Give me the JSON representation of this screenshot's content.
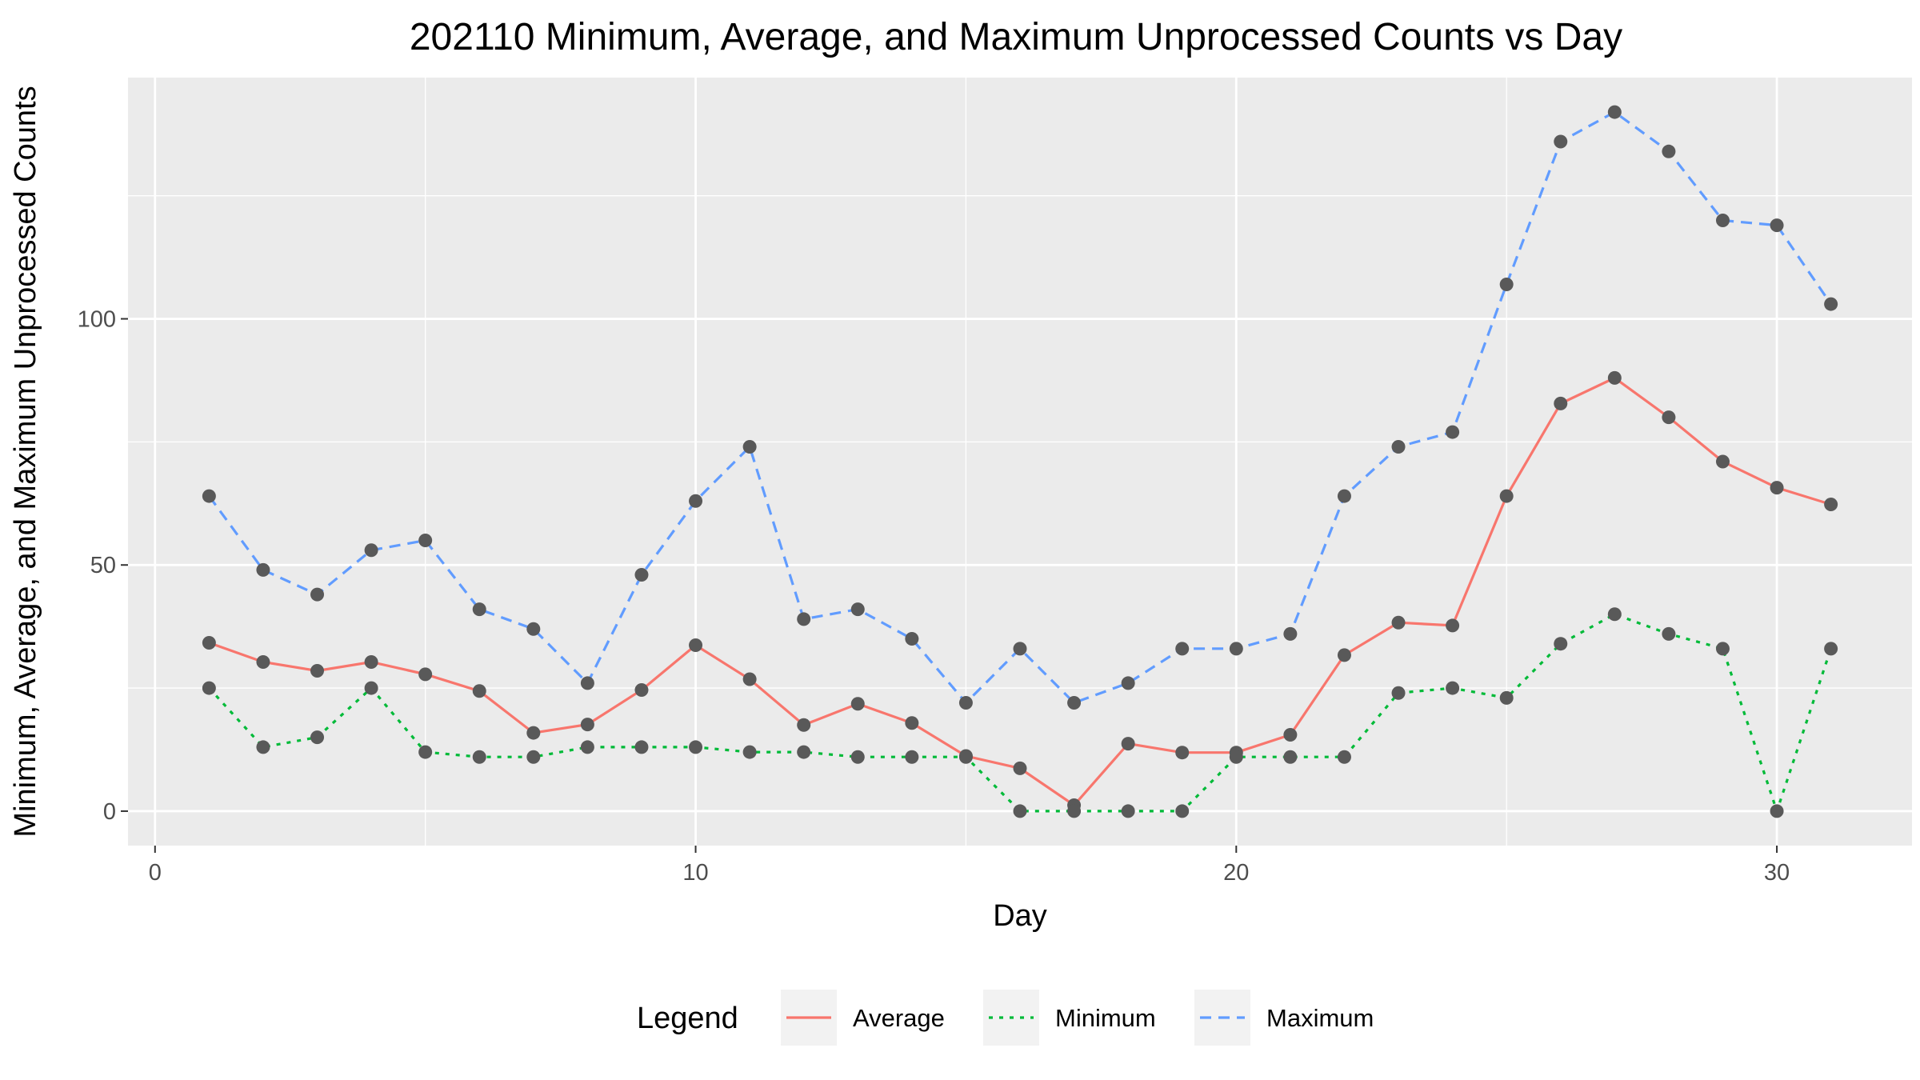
{
  "chart_data": {
    "type": "line",
    "title": "202110 Minimum, Average, and Maximum Unprocessed Counts vs Day",
    "xlabel": "Day",
    "ylabel": "Minimum, Average, and Maximum Unprocessed Counts",
    "xlim": [
      -0.5,
      32.5
    ],
    "ylim": [
      -7,
      149
    ],
    "x_ticks": [
      0,
      10,
      20,
      30
    ],
    "y_ticks": [
      0,
      50,
      100
    ],
    "grid": true,
    "legend_title": "Legend",
    "legend_position": "bottom",
    "x": [
      1,
      2,
      3,
      4,
      5,
      6,
      7,
      8,
      9,
      10,
      11,
      12,
      13,
      14,
      15,
      16,
      17,
      18,
      19,
      20,
      21,
      22,
      23,
      24,
      25,
      26,
      27,
      28,
      29,
      30,
      31
    ],
    "series": [
      {
        "name": "Average",
        "color": "#F8766D",
        "dash": "solid",
        "values": [
          34.2,
          30.3,
          28.5,
          30.3,
          27.8,
          24.4,
          15.9,
          17.6,
          24.6,
          33.7,
          26.8,
          17.5,
          21.8,
          17.9,
          11.2,
          8.7,
          1.2,
          13.7,
          11.9,
          11.9,
          15.5,
          31.7,
          38.3,
          37.7,
          64.0,
          82.8,
          88.0,
          80.0,
          71.0,
          65.7,
          62.3
        ]
      },
      {
        "name": "Minimum",
        "color": "#00BA38",
        "dash": "dotted",
        "values": [
          25,
          13,
          15,
          25,
          12,
          11,
          11,
          13,
          13,
          13,
          12,
          12,
          11,
          11,
          11,
          0,
          0,
          0,
          0,
          11,
          11,
          11,
          24,
          25,
          23,
          34,
          40,
          36,
          33,
          0,
          33
        ]
      },
      {
        "name": "Maximum",
        "color": "#619CFF",
        "dash": "dashed",
        "values": [
          64,
          49,
          44,
          53,
          55,
          41,
          37,
          26,
          48,
          63,
          74,
          39,
          41,
          35,
          22,
          33,
          22,
          26,
          33,
          33,
          36,
          64,
          74,
          77,
          107,
          136,
          142,
          134,
          120,
          119,
          103
        ]
      }
    ],
    "point_color": "#595959"
  }
}
